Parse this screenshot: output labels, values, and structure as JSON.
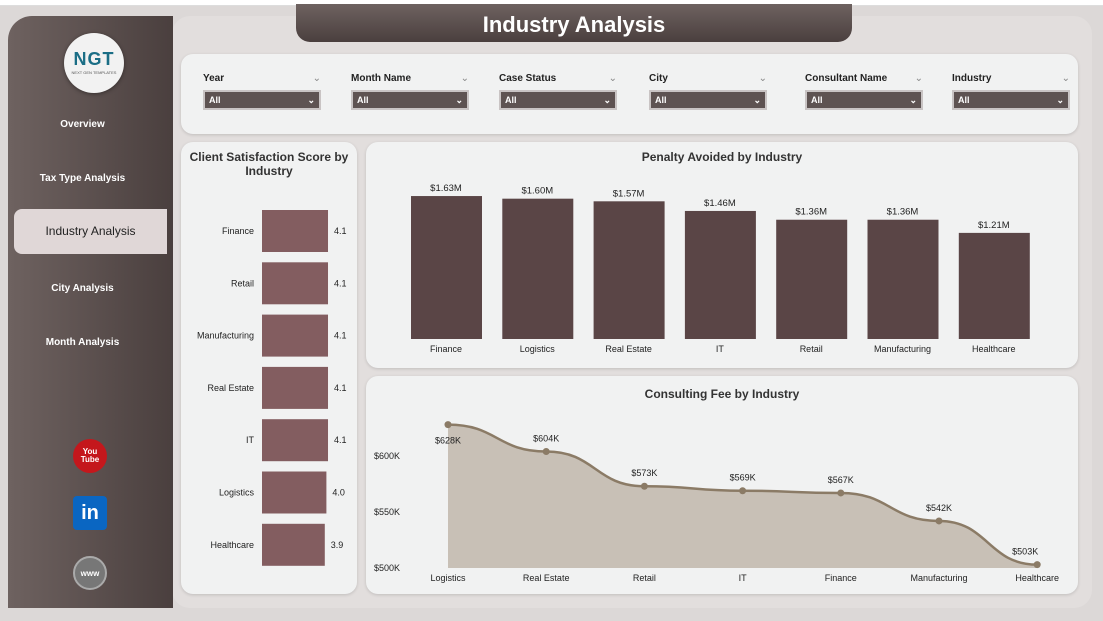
{
  "header": {
    "title": "Industry Analysis"
  },
  "logo": {
    "text": "NGT",
    "subtitle": "NEXT GEN TEMPLATES"
  },
  "sidebar": {
    "items": [
      {
        "label": "Overview"
      },
      {
        "label": "Tax Type Analysis"
      },
      {
        "label": "Industry Analysis",
        "active": true
      },
      {
        "label": "City Analysis"
      },
      {
        "label": "Month Analysis"
      }
    ],
    "social": [
      {
        "icon": "youtube-icon",
        "label": "You Tube"
      },
      {
        "icon": "linkedin-icon",
        "label": "in"
      },
      {
        "icon": "globe-icon",
        "label": "www"
      }
    ]
  },
  "filters": [
    {
      "label": "Year",
      "value": "All"
    },
    {
      "label": "Month Name",
      "value": "All"
    },
    {
      "label": "Case Status",
      "value": "All"
    },
    {
      "label": "City",
      "value": "All"
    },
    {
      "label": "Consultant Name",
      "value": "All"
    },
    {
      "label": "Industry",
      "value": "All"
    }
  ],
  "colors": {
    "accent": "#5a4546",
    "satisfaction_bar": "#835d60",
    "area_fill": "#c8c0b6",
    "line": "#8b7b66"
  },
  "chart_data": [
    {
      "type": "bar",
      "orientation": "horizontal",
      "title": "Client Satisfaction Score by Industry",
      "categories": [
        "Finance",
        "Retail",
        "Manufacturing",
        "Real Estate",
        "IT",
        "Logistics",
        "Healthcare"
      ],
      "values": [
        4.1,
        4.1,
        4.1,
        4.1,
        4.1,
        4.0,
        3.9
      ],
      "labels": [
        "4.1",
        "4.1",
        "4.1",
        "4.1",
        "4.1",
        "4.0",
        "3.9"
      ]
    },
    {
      "type": "bar",
      "title": "Penalty Avoided by Industry",
      "categories": [
        "Finance",
        "Logistics",
        "Real Estate",
        "IT",
        "Retail",
        "Manufacturing",
        "Healthcare"
      ],
      "values": [
        1.63,
        1.6,
        1.57,
        1.46,
        1.36,
        1.36,
        1.21
      ],
      "labels": [
        "$1.63M",
        "$1.60M",
        "$1.57M",
        "$1.46M",
        "$1.36M",
        "$1.36M",
        "$1.21M"
      ],
      "unit": "M"
    },
    {
      "type": "area",
      "title": "Consulting Fee by Industry",
      "categories": [
        "Logistics",
        "Real Estate",
        "Retail",
        "IT",
        "Finance",
        "Manufacturing",
        "Healthcare"
      ],
      "values": [
        628,
        604,
        573,
        569,
        567,
        542,
        503
      ],
      "labels": [
        "$628K",
        "$604K",
        "$573K",
        "$569K",
        "$567K",
        "$542K",
        "$503K"
      ],
      "yticks": [
        "$500K",
        "$550K",
        "$600K"
      ],
      "ytick_values": [
        500,
        550,
        600
      ],
      "ylim": [
        500,
        640
      ]
    }
  ]
}
